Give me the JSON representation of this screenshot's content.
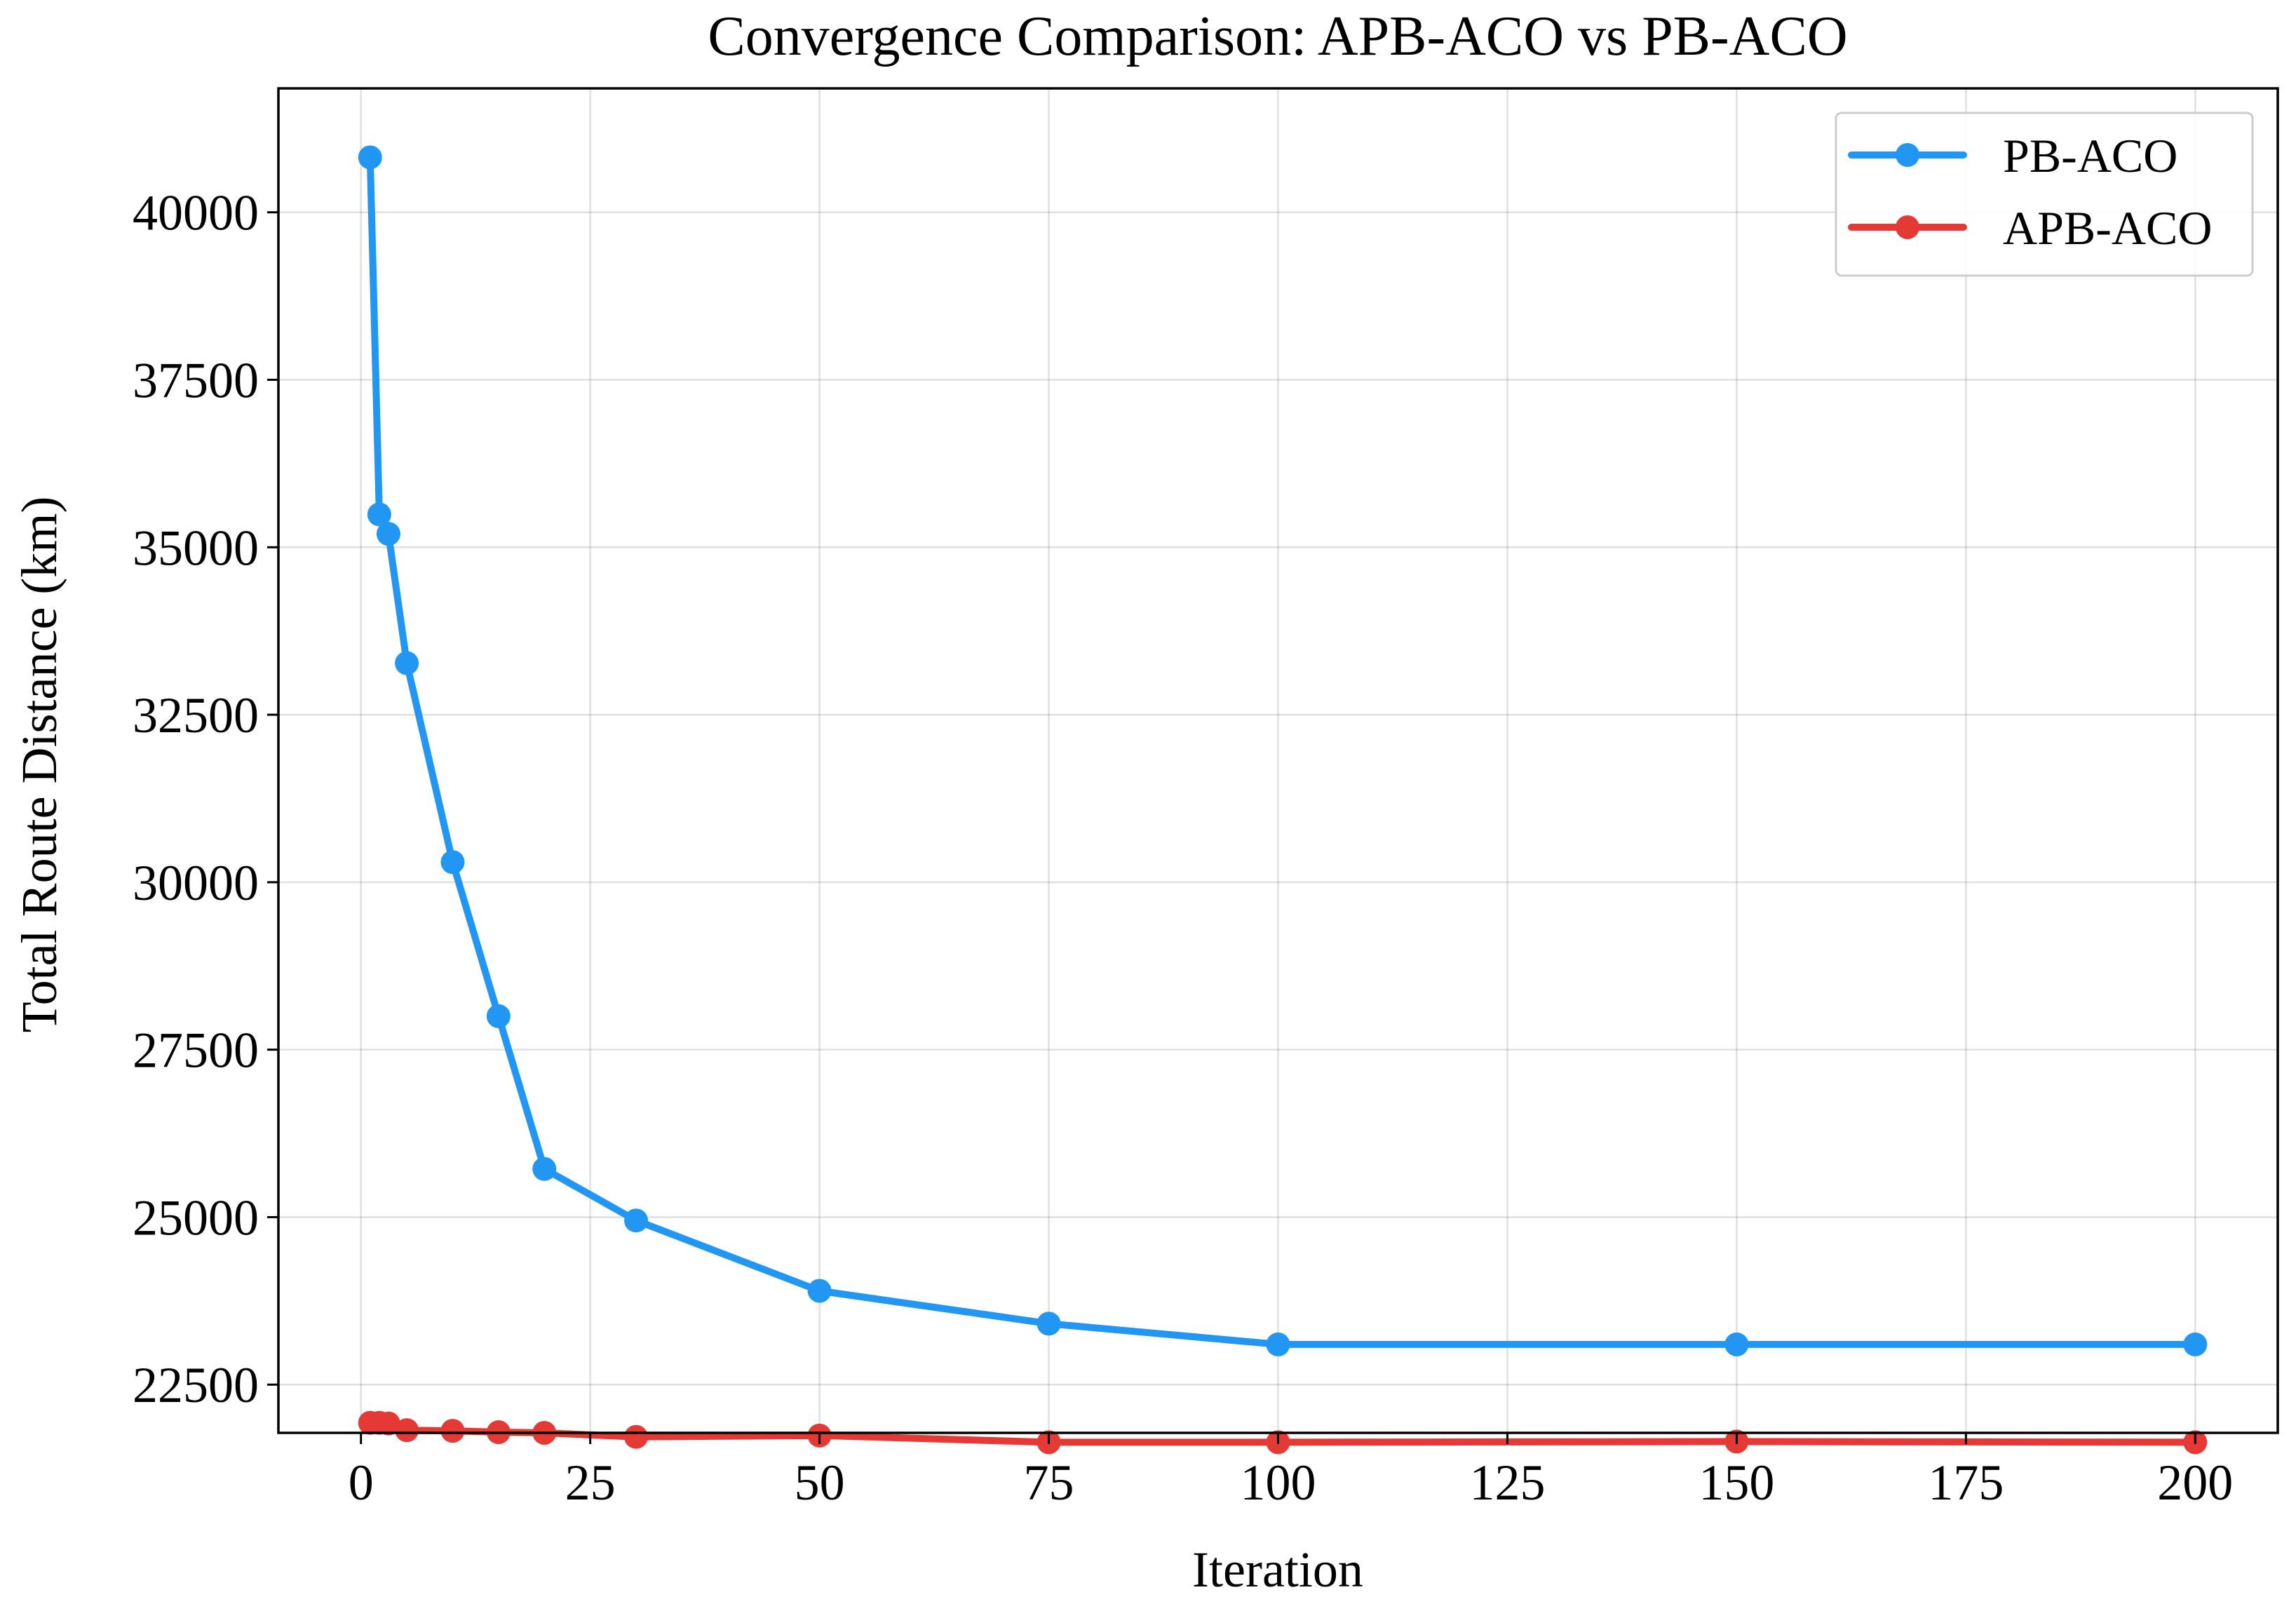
{
  "chart_data": {
    "type": "line",
    "title": "Convergence Comparison: APB-ACO vs PB-ACO",
    "xlabel": "Iteration",
    "ylabel": "Total Route Distance (km)",
    "xlim": [
      -9,
      209
    ],
    "ylim": [
      21780,
      41850
    ],
    "xticks": [
      0,
      25,
      50,
      75,
      100,
      125,
      150,
      175,
      200
    ],
    "yticks": [
      22500,
      25000,
      27500,
      30000,
      32500,
      35000,
      37500,
      40000
    ],
    "grid": true,
    "legend_position": "top-right",
    "series": [
      {
        "name": "PB-ACO",
        "color": "#2196F3",
        "x": [
          1,
          2,
          3,
          5,
          10,
          15,
          20,
          30,
          50,
          75,
          100,
          150,
          200
        ],
        "y": [
          40820,
          35490,
          35200,
          33270,
          30300,
          28000,
          25720,
          24950,
          23900,
          23410,
          23100,
          23100,
          23100
        ]
      },
      {
        "name": "APB-ACO",
        "color": "#E53935",
        "x": [
          1,
          2,
          3,
          5,
          10,
          15,
          20,
          30,
          50,
          75,
          100,
          150,
          200
        ],
        "y": [
          21930,
          21930,
          21920,
          21820,
          21810,
          21790,
          21780,
          21720,
          21740,
          21640,
          21640,
          21650,
          21640
        ]
      }
    ]
  }
}
